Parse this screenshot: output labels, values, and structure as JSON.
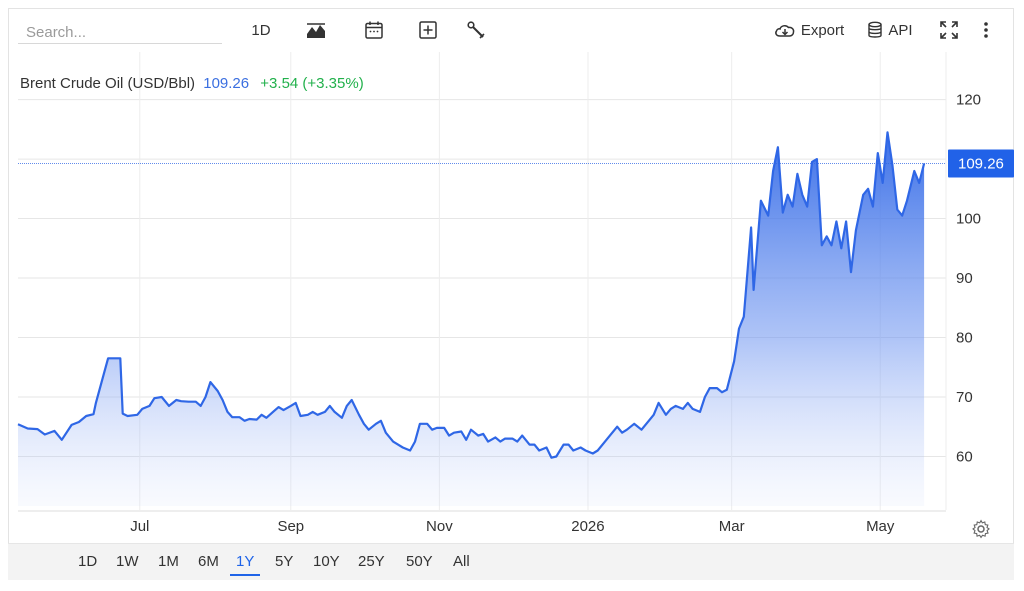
{
  "toolbar": {
    "search_placeholder": "Search...",
    "interval_label": "1D",
    "export_label": "Export",
    "api_label": "API",
    "icons": [
      "mountain-chart-icon",
      "calendar-icon",
      "plus-box-icon",
      "wrench-icon",
      "cloud-download-icon",
      "database-icon",
      "expand-icon",
      "more-vertical-icon"
    ]
  },
  "header": {
    "title": "Brent Crude Oil (USD/Bbl)",
    "price": "109.26",
    "change": "+3.54 (+3.35%)",
    "price_color": "#3b6fe0",
    "change_color": "#22b14c"
  },
  "colors": {
    "line": "#2f67e6",
    "fill_top": "#2f67e6",
    "badge": "#2162e8"
  },
  "chart_data": {
    "type": "area",
    "last_value": 109.26,
    "last_value_label": "109.26",
    "ylim": [
      51,
      128
    ],
    "yticks": [
      60,
      70,
      80,
      90,
      100,
      110,
      120
    ],
    "ytick_labels": [
      "60",
      "70",
      "80",
      "90",
      "100",
      "",
      "120"
    ],
    "x_range": [
      "2025-05-12",
      "2026-05-28"
    ],
    "xticks": [
      {
        "date": "2025-07-01",
        "label": "Jul"
      },
      {
        "date": "2025-09-01",
        "label": "Sep"
      },
      {
        "date": "2025-11-01",
        "label": "Nov"
      },
      {
        "date": "2026-01-01",
        "label": "2026"
      },
      {
        "date": "2026-03-01",
        "label": "Mar"
      },
      {
        "date": "2026-05-01",
        "label": "May"
      }
    ],
    "grid": true,
    "series": [
      {
        "points": [
          [
            "2025-05-12",
            65.4
          ],
          [
            "2025-05-16",
            64.7
          ],
          [
            "2025-05-20",
            64.6
          ],
          [
            "2025-05-23",
            63.7
          ],
          [
            "2025-05-27",
            64.3
          ],
          [
            "2025-05-30",
            62.8
          ],
          [
            "2025-06-03",
            65.3
          ],
          [
            "2025-06-06",
            65.8
          ],
          [
            "2025-06-09",
            66.8
          ],
          [
            "2025-06-12",
            67.1
          ],
          [
            "2025-06-13",
            69.0
          ],
          [
            "2025-06-16",
            73.5
          ],
          [
            "2025-06-18",
            76.5
          ],
          [
            "2025-06-20",
            76.5
          ],
          [
            "2025-06-23",
            76.5
          ],
          [
            "2025-06-24",
            67.2
          ],
          [
            "2025-06-26",
            66.8
          ],
          [
            "2025-06-30",
            67.0
          ],
          [
            "2025-07-02",
            68.0
          ],
          [
            "2025-07-05",
            68.5
          ],
          [
            "2025-07-07",
            69.8
          ],
          [
            "2025-07-10",
            70.0
          ],
          [
            "2025-07-13",
            68.5
          ],
          [
            "2025-07-16",
            69.5
          ],
          [
            "2025-07-18",
            69.3
          ],
          [
            "2025-07-21",
            69.2
          ],
          [
            "2025-07-24",
            69.2
          ],
          [
            "2025-07-26",
            68.5
          ],
          [
            "2025-07-28",
            70.0
          ],
          [
            "2025-07-30",
            72.5
          ],
          [
            "2025-08-02",
            71.0
          ],
          [
            "2025-08-04",
            69.5
          ],
          [
            "2025-08-06",
            67.5
          ],
          [
            "2025-08-08",
            66.6
          ],
          [
            "2025-08-11",
            66.6
          ],
          [
            "2025-08-13",
            66.0
          ],
          [
            "2025-08-15",
            66.3
          ],
          [
            "2025-08-18",
            66.2
          ],
          [
            "2025-08-20",
            67.0
          ],
          [
            "2025-08-22",
            66.5
          ],
          [
            "2025-08-25",
            67.6
          ],
          [
            "2025-08-27",
            68.3
          ],
          [
            "2025-08-29",
            67.8
          ],
          [
            "2025-09-01",
            68.5
          ],
          [
            "2025-09-03",
            69.0
          ],
          [
            "2025-09-05",
            66.8
          ],
          [
            "2025-09-08",
            67.0
          ],
          [
            "2025-09-10",
            67.5
          ],
          [
            "2025-09-12",
            67.0
          ],
          [
            "2025-09-15",
            67.5
          ],
          [
            "2025-09-17",
            68.5
          ],
          [
            "2025-09-19",
            67.5
          ],
          [
            "2025-09-22",
            66.5
          ],
          [
            "2025-09-24",
            68.5
          ],
          [
            "2025-09-26",
            69.5
          ],
          [
            "2025-09-29",
            67.0
          ],
          [
            "2025-10-01",
            65.5
          ],
          [
            "2025-10-03",
            64.5
          ],
          [
            "2025-10-06",
            65.5
          ],
          [
            "2025-10-08",
            66.0
          ],
          [
            "2025-10-10",
            64.0
          ],
          [
            "2025-10-13",
            62.5
          ],
          [
            "2025-10-15",
            62.0
          ],
          [
            "2025-10-17",
            61.5
          ],
          [
            "2025-10-20",
            61.0
          ],
          [
            "2025-10-22",
            62.5
          ],
          [
            "2025-10-24",
            65.5
          ],
          [
            "2025-10-27",
            65.5
          ],
          [
            "2025-10-29",
            64.5
          ],
          [
            "2025-10-31",
            64.8
          ],
          [
            "2025-11-03",
            64.8
          ],
          [
            "2025-11-05",
            63.5
          ],
          [
            "2025-11-07",
            64.0
          ],
          [
            "2025-11-10",
            64.2
          ],
          [
            "2025-11-12",
            62.8
          ],
          [
            "2025-11-14",
            64.5
          ],
          [
            "2025-11-17",
            63.5
          ],
          [
            "2025-11-19",
            63.8
          ],
          [
            "2025-11-21",
            62.5
          ],
          [
            "2025-11-24",
            63.2
          ],
          [
            "2025-11-26",
            62.5
          ],
          [
            "2025-11-28",
            63.0
          ],
          [
            "2025-12-01",
            63.0
          ],
          [
            "2025-12-03",
            62.5
          ],
          [
            "2025-12-05",
            63.5
          ],
          [
            "2025-12-08",
            62.0
          ],
          [
            "2025-12-10",
            62.0
          ],
          [
            "2025-12-12",
            61.0
          ],
          [
            "2025-12-15",
            61.5
          ],
          [
            "2025-12-17",
            59.8
          ],
          [
            "2025-12-19",
            60.0
          ],
          [
            "2025-12-22",
            62.0
          ],
          [
            "2025-12-24",
            62.0
          ],
          [
            "2025-12-26",
            61.0
          ],
          [
            "2025-12-29",
            61.5
          ],
          [
            "2025-12-31",
            61.0
          ],
          [
            "2026-01-03",
            60.5
          ],
          [
            "2026-01-05",
            61.0
          ],
          [
            "2026-01-08",
            62.5
          ],
          [
            "2026-01-10",
            63.5
          ],
          [
            "2026-01-13",
            65.0
          ],
          [
            "2026-01-15",
            64.0
          ],
          [
            "2026-01-17",
            64.5
          ],
          [
            "2026-01-20",
            65.5
          ],
          [
            "2026-01-23",
            64.5
          ],
          [
            "2026-01-26",
            66.0
          ],
          [
            "2026-01-28",
            67.0
          ],
          [
            "2026-01-30",
            69.0
          ],
          [
            "2026-02-02",
            67.0
          ],
          [
            "2026-02-04",
            68.0
          ],
          [
            "2026-02-06",
            68.5
          ],
          [
            "2026-02-09",
            68.0
          ],
          [
            "2026-02-11",
            69.0
          ],
          [
            "2026-02-13",
            68.0
          ],
          [
            "2026-02-16",
            67.5
          ],
          [
            "2026-02-18",
            70.0
          ],
          [
            "2026-02-20",
            71.5
          ],
          [
            "2026-02-23",
            71.5
          ],
          [
            "2026-02-25",
            70.8
          ],
          [
            "2026-02-27",
            71.2
          ],
          [
            "2026-03-02",
            76.0
          ],
          [
            "2026-03-04",
            81.5
          ],
          [
            "2026-03-06",
            83.5
          ],
          [
            "2026-03-09",
            98.5
          ],
          [
            "2026-03-10",
            88.0
          ],
          [
            "2026-03-12",
            98.0
          ],
          [
            "2026-03-13",
            103.0
          ],
          [
            "2026-03-16",
            100.5
          ],
          [
            "2026-03-18",
            108.0
          ],
          [
            "2026-03-20",
            112.0
          ],
          [
            "2026-03-22",
            101.0
          ],
          [
            "2026-03-24",
            104.0
          ],
          [
            "2026-03-26",
            102.0
          ],
          [
            "2026-03-28",
            107.5
          ],
          [
            "2026-03-30",
            104.0
          ],
          [
            "2026-04-01",
            102.0
          ],
          [
            "2026-04-03",
            109.5
          ],
          [
            "2026-04-05",
            110.0
          ],
          [
            "2026-04-07",
            95.5
          ],
          [
            "2026-04-09",
            97.0
          ],
          [
            "2026-04-11",
            95.5
          ],
          [
            "2026-04-13",
            99.5
          ],
          [
            "2026-04-15",
            95.0
          ],
          [
            "2026-04-17",
            99.5
          ],
          [
            "2026-04-19",
            91.0
          ],
          [
            "2026-04-21",
            98.0
          ],
          [
            "2026-04-24",
            104.0
          ],
          [
            "2026-04-26",
            105.0
          ],
          [
            "2026-04-28",
            102.0
          ],
          [
            "2026-04-30",
            111.0
          ],
          [
            "2026-05-02",
            106.0
          ],
          [
            "2026-05-04",
            114.5
          ],
          [
            "2026-05-06",
            109.0
          ],
          [
            "2026-05-08",
            101.5
          ],
          [
            "2026-05-10",
            100.5
          ],
          [
            "2026-05-12",
            103.0
          ],
          [
            "2026-05-15",
            108.0
          ],
          [
            "2026-05-17",
            106.0
          ],
          [
            "2026-05-19",
            109.26
          ]
        ]
      }
    ]
  },
  "range_selector": {
    "options": [
      "1D",
      "1W",
      "1M",
      "6M",
      "1Y",
      "5Y",
      "10Y",
      "25Y",
      "50Y",
      "All"
    ],
    "active": "1Y"
  }
}
